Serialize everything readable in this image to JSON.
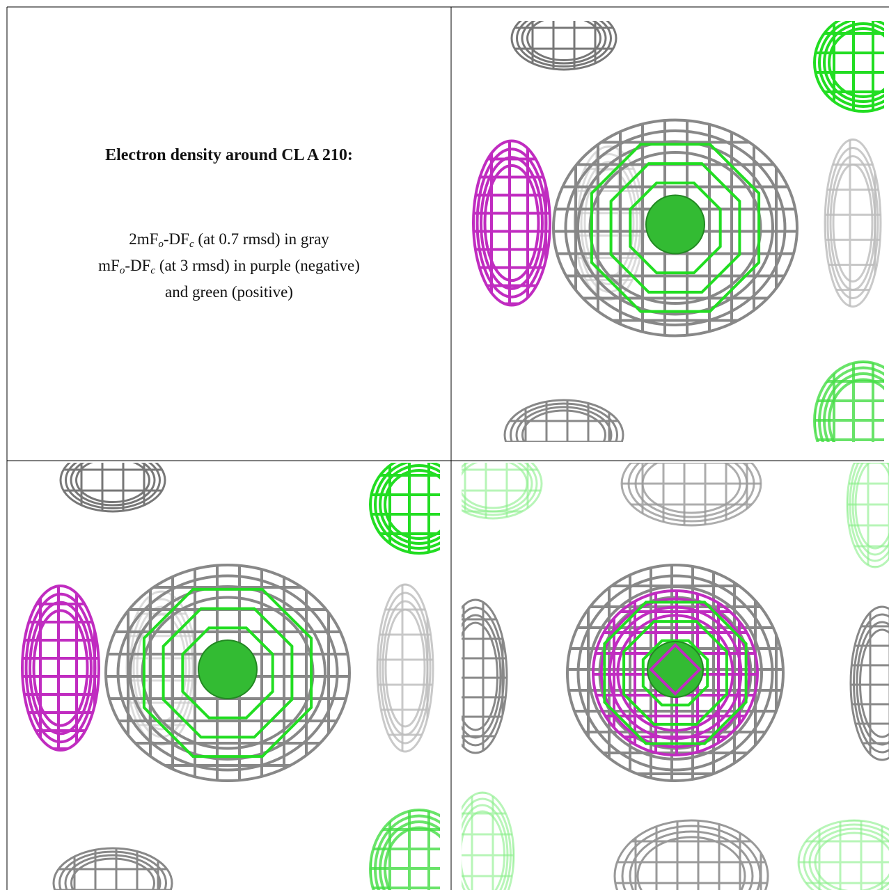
{
  "header": {
    "title": "Electron density around CL A 210:"
  },
  "legend": [
    {
      "parts": [
        "2mF",
        "o",
        "-DF",
        "c",
        " (at 0.7 rmsd) in gray"
      ]
    },
    {
      "parts": [
        "mF",
        "o",
        "-DF",
        "c",
        " (at 3 rmsd) in purple (negative)"
      ]
    },
    {
      "parts": [
        "and green (positive)"
      ]
    }
  ]
}
